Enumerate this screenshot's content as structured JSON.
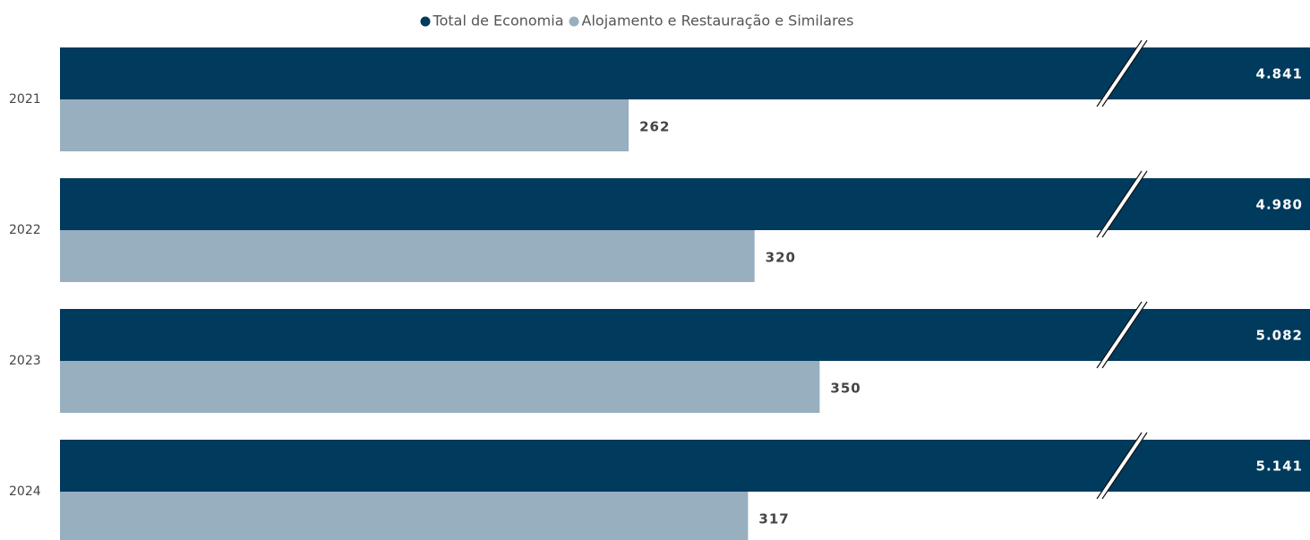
{
  "chart_data": {
    "type": "barh",
    "categories": [
      "2021",
      "2022",
      "2023",
      "2024"
    ],
    "series": [
      {
        "name": "Total de Economia",
        "color": "#003a5d",
        "values": [
          4841,
          4980,
          5082,
          5141
        ],
        "value_labels": [
          "4.841",
          "4.980",
          "5.082",
          "5.141"
        ]
      },
      {
        "name": "Alojamento e Restauração e Similares",
        "color": "#97afbf",
        "values": [
          262,
          320,
          350,
          317
        ]
      }
    ],
    "legend": "top"
  }
}
